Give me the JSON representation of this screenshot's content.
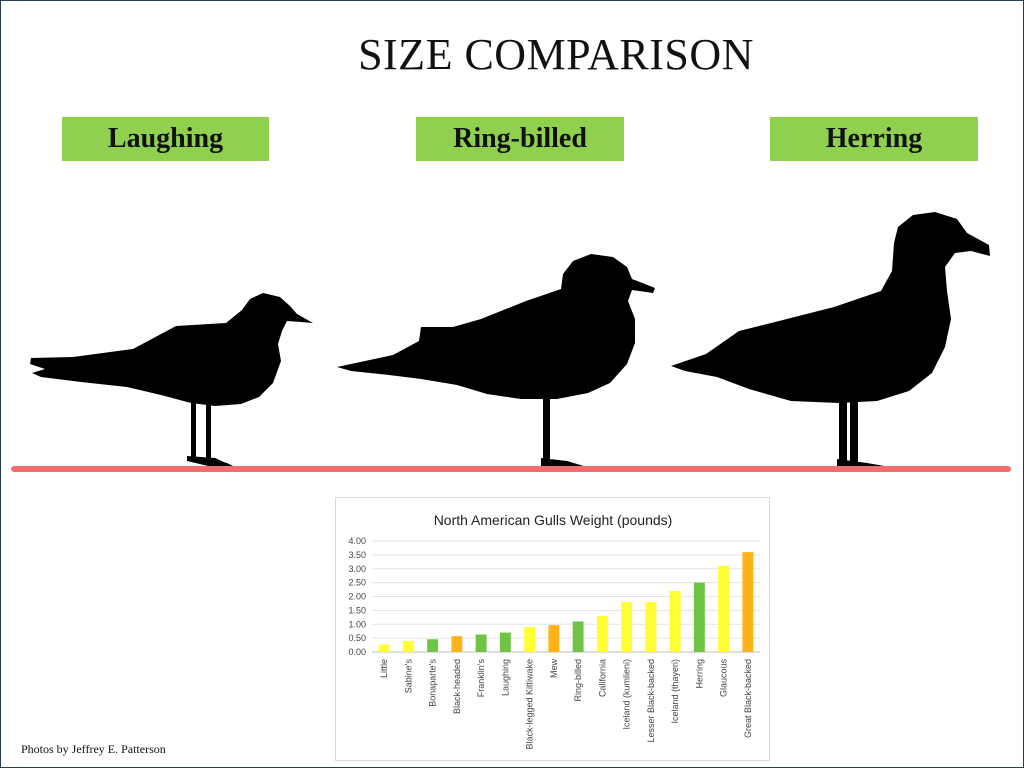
{
  "slide": {
    "title": "SIZE COMPARISON",
    "labels": {
      "laughing": "Laughing",
      "ring_billed": "Ring-billed",
      "herring": "Herring"
    },
    "credit": "Photos by Jeffrey E. Patterson"
  },
  "colors": {
    "label_background": "#8fd14f",
    "ground_line": "#f26d6d",
    "silhouette": "#000000",
    "bar_yellow": "#ffff33",
    "bar_green": "#70c445",
    "bar_orange": "#ffb31a"
  },
  "chart_data": {
    "type": "bar",
    "title": "North  American Gulls Weight (pounds)",
    "xlabel": "",
    "ylabel": "",
    "ylim": [
      0,
      4
    ],
    "yticks": [
      "0.00",
      "0.50",
      "1.00",
      "1.50",
      "2.00",
      "2.50",
      "3.00",
      "3.50",
      "4.00"
    ],
    "grid": true,
    "legend": "none",
    "categories": [
      "Little",
      "Sabine's",
      "Bonaparte's",
      "Black-headed",
      "Franklin's",
      "Laughing",
      "Black-legged Kittiwake",
      "Mew",
      "Ring-billed",
      "California",
      "Iceland (kumlieni)",
      "Lesser Black-backed",
      "Iceland (thayeri)",
      "Herring",
      "Glaucous",
      "Great Black-backed"
    ],
    "values": [
      0.27,
      0.4,
      0.46,
      0.57,
      0.63,
      0.7,
      0.9,
      0.97,
      1.1,
      1.3,
      1.8,
      1.8,
      2.2,
      2.5,
      3.1,
      3.6
    ],
    "bar_colors": [
      "yellow",
      "yellow",
      "green",
      "orange",
      "green",
      "green",
      "yellow",
      "orange",
      "green",
      "yellow",
      "yellow",
      "yellow",
      "yellow",
      "green",
      "yellow",
      "orange"
    ]
  }
}
